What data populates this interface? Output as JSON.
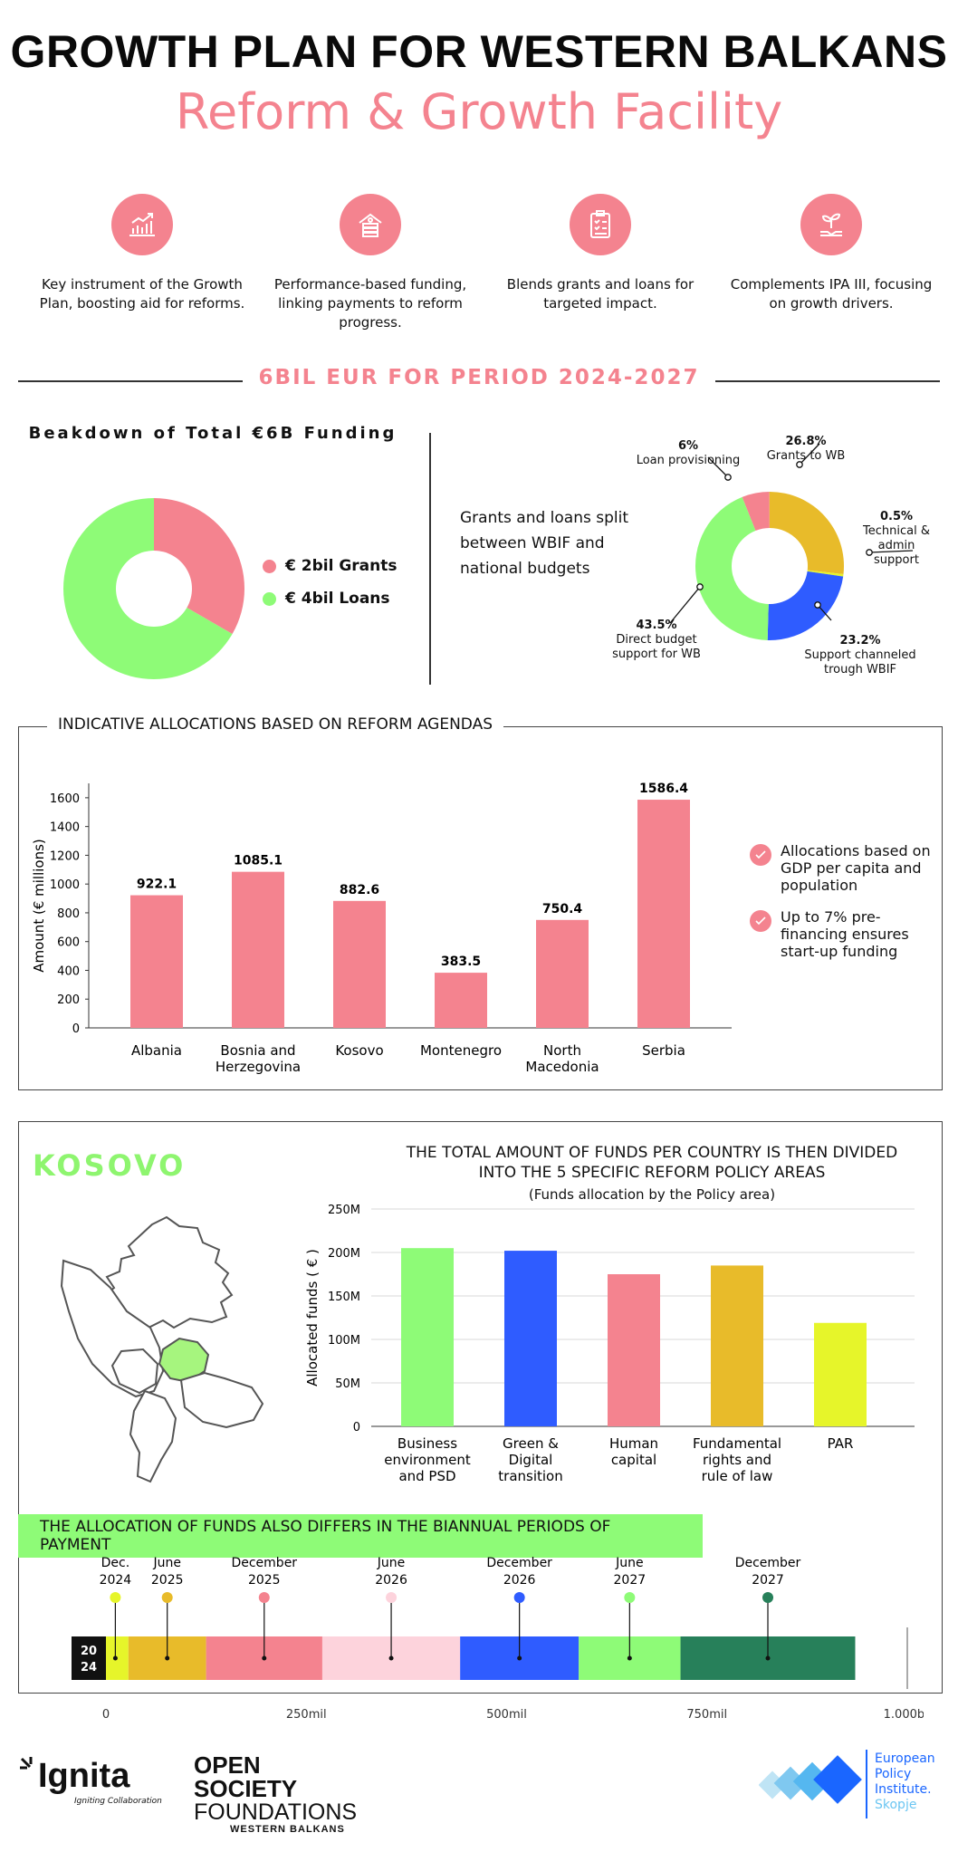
{
  "header": {
    "title": "GROWTH PLAN FOR WESTERN BALKANS",
    "subtitle": "Reform & Growth Facility"
  },
  "features": [
    {
      "icon": "chart-growth-icon",
      "text": "Key instrument of the Growth Plan, boosting aid for reforms."
    },
    {
      "icon": "money-stack-icon",
      "text": "Performance-based funding, linking payments to reform progress."
    },
    {
      "icon": "clipboard-checklist-icon",
      "text": "Blends grants and loans for targeted impact."
    },
    {
      "icon": "sprout-hand-icon",
      "text": "Complements IPA III, focusing on growth drivers."
    }
  ],
  "period_heading": "6BIL EUR FOR PERIOD 2024-2027",
  "colors": {
    "pink": "#f4838f",
    "light_green": "#8efb77",
    "yellow_gold": "#e8bb2a",
    "blue": "#2f5cff",
    "lime": "#e6f52a",
    "dark_green": "#27805a",
    "light_pink": "#fdd3dc"
  },
  "chart_data": [
    {
      "type": "pie",
      "title": "Beakdown of Total €6B Funding",
      "slices": [
        {
          "label": "€ 2bil Grants",
          "value": 2,
          "color": "#f4838f"
        },
        {
          "label": "€ 4bil Loans",
          "value": 4,
          "color": "#8efb77"
        }
      ]
    },
    {
      "type": "pie",
      "annotation": "Grants and loans split between WBIF and national budgets",
      "slices": [
        {
          "pct": "6%",
          "value": 6,
          "label": "Loan provisioning",
          "color": "#f4838f"
        },
        {
          "pct": "26.8%",
          "value": 26.8,
          "label": "Grants to WB",
          "color": "#e8bb2a"
        },
        {
          "pct": "0.5%",
          "value": 0.5,
          "label": "Technical & admin support",
          "color": "#e6f52a"
        },
        {
          "pct": "23.2%",
          "value": 23.2,
          "label": "Support channeled trough WBIF",
          "color": "#2f5cff"
        },
        {
          "pct": "43.5%",
          "value": 43.5,
          "label": "Direct budget support for WB",
          "color": "#8efb77"
        }
      ]
    },
    {
      "type": "bar",
      "title": "INDICATIVE ALLOCATIONS BASED ON REFORM AGENDAS",
      "ylabel": "Amount (€ millions)",
      "categories": [
        "Albania",
        "Bosnia and Herzegovina",
        "Kosovo",
        "Montenegro",
        "North Macedonia",
        "Serbia"
      ],
      "values": [
        922.1,
        1085.1,
        882.6,
        383.5,
        750.4,
        1586.4
      ],
      "value_labels": [
        "922.1",
        "1085.1",
        "882.6",
        "383.5",
        "750.4",
        "1586.4"
      ],
      "yticks": [
        "0",
        "200",
        "400",
        "600",
        "800",
        "1000",
        "1200",
        "1400",
        "1600"
      ],
      "ylim": [
        0,
        1700
      ],
      "color": "#f4838f",
      "notes": [
        "Allocations based on GDP per capita and population",
        "Up to 7% pre-financing ensures start-up funding"
      ]
    },
    {
      "type": "bar",
      "title": "THE TOTAL AMOUNT OF FUNDS PER COUNTRY IS THEN DIVIDED INTO THE 5 SPECIFIC REFORM POLICY AREAS",
      "subtitle": "(Funds allocation by the Policy area)",
      "ylabel": "Allocated funds ( € )",
      "categories": [
        "Business environment and PSD",
        "Green & Digital transition",
        "Human capital",
        "Fundamental rights and rule of law",
        "PAR"
      ],
      "values": [
        205,
        202,
        175,
        185,
        119
      ],
      "colors": [
        "#8efb77",
        "#2f5cff",
        "#f4838f",
        "#e8bb2a",
        "#e6f52a"
      ],
      "yticks": [
        "0",
        "50M",
        "100M",
        "150M",
        "200M",
        "250M"
      ],
      "ylim": [
        0,
        250
      ],
      "grid": true
    },
    {
      "type": "bar",
      "title": "THE ALLOCATION OF FUNDS ALSO DIFFERS IN THE BIANNUAL PERIODS OF PAYMENT",
      "orientation": "horizontal-stacked",
      "xticks": [
        "0",
        "250mil",
        "500mil",
        "750mil",
        "1.000bil"
      ],
      "xlim": [
        0,
        1000
      ],
      "segments": [
        {
          "period": "Dec. 2024",
          "value": 28,
          "color": "#e6f52a"
        },
        {
          "period": "June 2025",
          "value": 97,
          "color": "#e8bb2a"
        },
        {
          "period": "December 2025",
          "value": 145,
          "color": "#f4838f"
        },
        {
          "period": "June 2026",
          "value": 172,
          "color": "#fdd3dc"
        },
        {
          "period": "December 2026",
          "value": 148,
          "color": "#2f5cff"
        },
        {
          "period": "June 2027",
          "value": 127,
          "color": "#8efb77"
        },
        {
          "period": "December 2027",
          "value": 218,
          "color": "#27805a"
        }
      ]
    }
  ],
  "kosovo": {
    "label": "KOSOVO"
  },
  "badge_year": [
    "20",
    "24"
  ],
  "footer": {
    "ignita": "Ignita",
    "ignita_tagline": "Igniting Collaboration",
    "osf_line1": "OPEN SOCIETY",
    "osf_line2": "FOUNDATIONS",
    "osf_line3": "WESTERN BALKANS",
    "epi_line1": "European",
    "epi_line2": "Policy",
    "epi_line3": "Institute.",
    "epi_line4": "Skopje"
  }
}
